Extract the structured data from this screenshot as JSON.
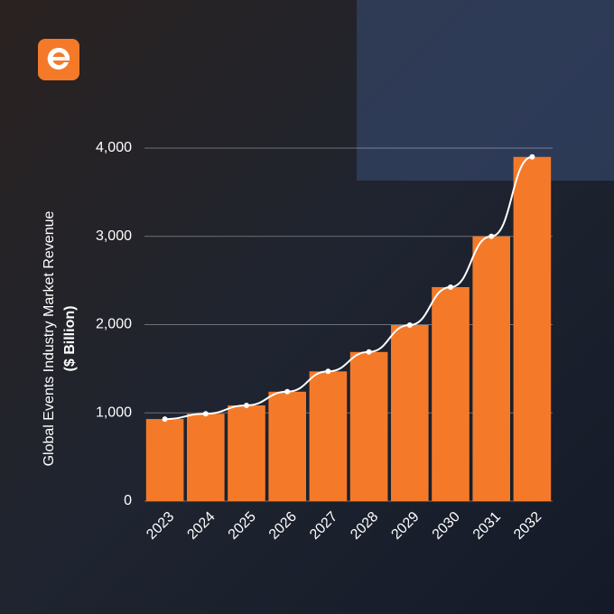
{
  "chart_data": {
    "type": "bar",
    "y_label": "Global Events Industry Market Revenue",
    "y_label_unit": "($ Billion)",
    "categories": [
      "2023",
      "2024",
      "2025",
      "2026",
      "2027",
      "2028",
      "2029",
      "2030",
      "2031",
      "2032"
    ],
    "values": [
      930,
      990,
      1085,
      1240,
      1470,
      1690,
      1995,
      2425,
      3000,
      3900
    ],
    "color": "#f47a2a",
    "line_overlay": true,
    "line_color": "#ffffff",
    "ylim": [
      0,
      4000
    ],
    "yticks": [
      0,
      {
        "value": 1000,
        "label": "1,000"
      },
      {
        "value": 2000,
        "label": "2,000"
      },
      {
        "value": 3000,
        "label": "3,000"
      },
      {
        "value": 4000,
        "label": "4,000"
      }
    ],
    "grid": true
  }
}
